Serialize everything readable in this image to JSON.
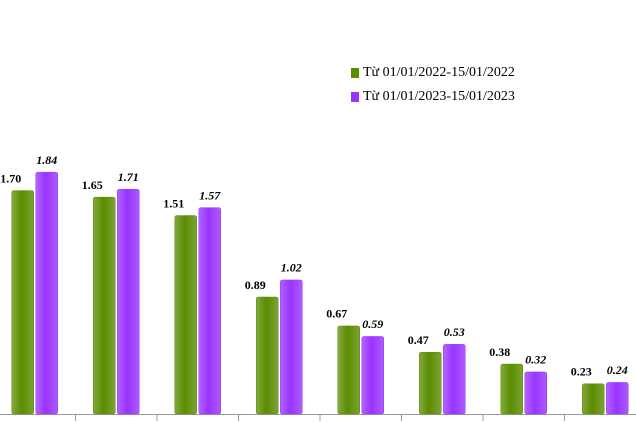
{
  "chart_data": {
    "type": "bar",
    "categories": [
      null,
      null,
      null,
      null,
      null,
      null,
      null,
      null
    ],
    "series": [
      {
        "name": "Từ 01/01/2022-15/01/2022",
        "color": "#5b8c00",
        "values": [
          1.7,
          1.65,
          1.51,
          0.89,
          0.67,
          0.47,
          0.38,
          0.23
        ],
        "value_labels": [
          "1.70",
          "1.65",
          "1.51",
          "0.89",
          "0.67",
          "0.47",
          "0.38",
          "0.23"
        ]
      },
      {
        "name": "Từ 01/01/2023-15/01/2023",
        "color": "#9933ff",
        "values": [
          1.84,
          1.71,
          1.57,
          1.02,
          0.59,
          0.53,
          0.32,
          0.24
        ],
        "value_labels": [
          "1.84",
          "1.71",
          "1.57",
          "1.02",
          "0.59",
          "0.53",
          "0.32",
          "0.24"
        ]
      }
    ],
    "ylim": [
      0,
      3.15
    ]
  }
}
